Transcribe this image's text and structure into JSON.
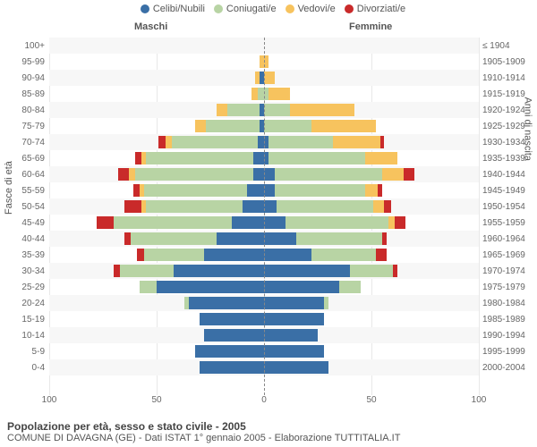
{
  "legend": [
    {
      "label": "Celibi/Nubili",
      "color": "#3a6fa6"
    },
    {
      "label": "Coniugati/e",
      "color": "#b8d4a4"
    },
    {
      "label": "Vedovi/e",
      "color": "#f7c35e"
    },
    {
      "label": "Divorziati/e",
      "color": "#c92a2a"
    }
  ],
  "headings": {
    "male": "Maschi",
    "female": "Femmine"
  },
  "axis_titles": {
    "left": "Fasce di età",
    "right": "Anni di nascita"
  },
  "xlim": 100,
  "xticks": [
    100,
    50,
    0,
    50,
    100
  ],
  "colors": {
    "celibi": "#3a6fa6",
    "coniugati": "#b8d4a4",
    "vedovi": "#f7c35e",
    "divorziati": "#c92a2a",
    "grid": "#e8e8e8",
    "bg": "#ffffff"
  },
  "rows": [
    {
      "age": "100+",
      "birth": "≤ 1904",
      "m": [
        0,
        0,
        0,
        0
      ],
      "f": [
        0,
        0,
        0,
        0
      ]
    },
    {
      "age": "95-99",
      "birth": "1905-1909",
      "m": [
        0,
        0,
        2,
        0
      ],
      "f": [
        0,
        0,
        2,
        0
      ]
    },
    {
      "age": "90-94",
      "birth": "1910-1914",
      "m": [
        2,
        0,
        2,
        0
      ],
      "f": [
        0,
        0,
        5,
        0
      ]
    },
    {
      "age": "85-89",
      "birth": "1915-1919",
      "m": [
        0,
        3,
        3,
        0
      ],
      "f": [
        0,
        2,
        10,
        0
      ]
    },
    {
      "age": "80-84",
      "birth": "1920-1924",
      "m": [
        2,
        15,
        5,
        0
      ],
      "f": [
        0,
        12,
        30,
        0
      ]
    },
    {
      "age": "75-79",
      "birth": "1925-1929",
      "m": [
        2,
        25,
        5,
        0
      ],
      "f": [
        0,
        22,
        30,
        0
      ]
    },
    {
      "age": "70-74",
      "birth": "1930-1934",
      "m": [
        3,
        40,
        3,
        3
      ],
      "f": [
        2,
        30,
        22,
        2
      ]
    },
    {
      "age": "65-69",
      "birth": "1935-1939",
      "m": [
        5,
        50,
        2,
        3
      ],
      "f": [
        2,
        45,
        15,
        0
      ]
    },
    {
      "age": "60-64",
      "birth": "1940-1944",
      "m": [
        5,
        55,
        3,
        5
      ],
      "f": [
        5,
        50,
        10,
        5
      ]
    },
    {
      "age": "55-59",
      "birth": "1945-1949",
      "m": [
        8,
        48,
        2,
        3
      ],
      "f": [
        5,
        42,
        6,
        2
      ]
    },
    {
      "age": "50-54",
      "birth": "1950-1954",
      "m": [
        10,
        45,
        2,
        8
      ],
      "f": [
        6,
        45,
        5,
        3
      ]
    },
    {
      "age": "45-49",
      "birth": "1955-1959",
      "m": [
        15,
        55,
        0,
        8
      ],
      "f": [
        10,
        48,
        3,
        5
      ]
    },
    {
      "age": "40-44",
      "birth": "1960-1964",
      "m": [
        22,
        40,
        0,
        3
      ],
      "f": [
        15,
        40,
        0,
        2
      ]
    },
    {
      "age": "35-39",
      "birth": "1965-1969",
      "m": [
        28,
        28,
        0,
        3
      ],
      "f": [
        22,
        30,
        0,
        5
      ]
    },
    {
      "age": "30-34",
      "birth": "1970-1974",
      "m": [
        42,
        25,
        0,
        3
      ],
      "f": [
        40,
        20,
        0,
        2
      ]
    },
    {
      "age": "25-29",
      "birth": "1975-1979",
      "m": [
        50,
        8,
        0,
        0
      ],
      "f": [
        35,
        10,
        0,
        0
      ]
    },
    {
      "age": "20-24",
      "birth": "1980-1984",
      "m": [
        35,
        2,
        0,
        0
      ],
      "f": [
        28,
        2,
        0,
        0
      ]
    },
    {
      "age": "15-19",
      "birth": "1985-1989",
      "m": [
        30,
        0,
        0,
        0
      ],
      "f": [
        28,
        0,
        0,
        0
      ]
    },
    {
      "age": "10-14",
      "birth": "1990-1994",
      "m": [
        28,
        0,
        0,
        0
      ],
      "f": [
        25,
        0,
        0,
        0
      ]
    },
    {
      "age": "5-9",
      "birth": "1995-1999",
      "m": [
        32,
        0,
        0,
        0
      ],
      "f": [
        28,
        0,
        0,
        0
      ]
    },
    {
      "age": "0-4",
      "birth": "2000-2004",
      "m": [
        30,
        0,
        0,
        0
      ],
      "f": [
        30,
        0,
        0,
        0
      ]
    }
  ],
  "footer": {
    "title": "Popolazione per età, sesso e stato civile - 2005",
    "sub": "COMUNE DI DAVAGNA (GE) - Dati ISTAT 1° gennaio 2005 - Elaborazione TUTTITALIA.IT"
  }
}
